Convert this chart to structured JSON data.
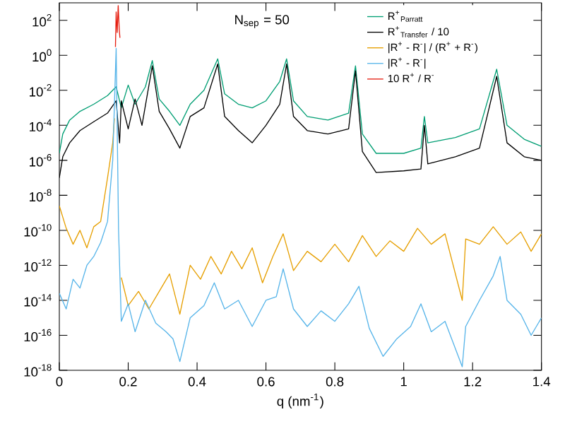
{
  "chart_data": {
    "type": "line",
    "xlabel": "q (nm$^{-1}$)",
    "annotations": [
      "N$_{sep}$ = 50"
    ],
    "xlim": [
      0,
      1.4
    ],
    "xticks": [
      0,
      0.2,
      0.4,
      0.6,
      0.8,
      1,
      1.2,
      1.4
    ],
    "ylim": [
      1e-18,
      1000
    ],
    "log": "y",
    "yticks": [
      {
        "value": 1e-18,
        "label": "10$^{-18}$"
      },
      {
        "value": 1e-16,
        "label": "10$^{-16}$"
      },
      {
        "value": 1e-14,
        "label": "10$^{-14}$"
      },
      {
        "value": 1e-12,
        "label": "10$^{-12}$"
      },
      {
        "value": 1e-10,
        "label": "10$^{-10}$"
      },
      {
        "value": 1e-08,
        "label": "10$^{-8}$"
      },
      {
        "value": 1e-06,
        "label": "10$^{-6}$"
      },
      {
        "value": 0.0001,
        "label": "10$^{-4}$"
      },
      {
        "value": 0.01,
        "label": "10$^{-2}$"
      },
      {
        "value": 1,
        "label": "10$^{0}$"
      },
      {
        "value": 100,
        "label": "10$^{2}$"
      }
    ],
    "legend": "top right",
    "series": [
      {
        "name": "R$^{+}$$_{Parratt}$",
        "color": "#009e73",
        "x": [
          0,
          0.01,
          0.03,
          0.06,
          0.1,
          0.14,
          0.165,
          0.18,
          0.2,
          0.22,
          0.25,
          0.27,
          0.29,
          0.32,
          0.35,
          0.38,
          0.42,
          0.46,
          0.48,
          0.52,
          0.56,
          0.6,
          0.64,
          0.66,
          0.68,
          0.72,
          0.78,
          0.84,
          0.86,
          0.88,
          0.92,
          1.0,
          1.05,
          1.06,
          1.07,
          1.15,
          1.22,
          1.27,
          1.3,
          1.35,
          1.4
        ],
        "values": [
          2.5e-06,
          3.2e-05,
          0.0002,
          0.00063,
          0.0016,
          0.005,
          0.016,
          0.001,
          0.02,
          0.0016,
          0.016,
          0.5,
          0.0032,
          0.00063,
          0.0001,
          0.0016,
          0.01,
          0.63,
          0.0063,
          0.0016,
          0.001,
          0.0025,
          0.032,
          0.63,
          0.0025,
          0.00032,
          0.0002,
          0.0005,
          0.25,
          3.2e-05,
          2.5e-06,
          2.5e-06,
          5e-06,
          0.00032,
          1e-05,
          2e-05,
          6.3e-05,
          0.16,
          0.0001,
          1.6e-05,
          6.3e-06
        ]
      },
      {
        "name": "R$^{+}$$_{Transfer}$ / 10",
        "color": "#000000",
        "x": [
          0,
          0.01,
          0.03,
          0.06,
          0.1,
          0.14,
          0.165,
          0.175,
          0.18,
          0.2,
          0.22,
          0.24,
          0.27,
          0.29,
          0.32,
          0.35,
          0.38,
          0.42,
          0.46,
          0.48,
          0.52,
          0.56,
          0.6,
          0.64,
          0.66,
          0.68,
          0.72,
          0.78,
          0.84,
          0.86,
          0.88,
          0.92,
          1.0,
          1.05,
          1.06,
          1.07,
          1.15,
          1.22,
          1.27,
          1.3,
          1.35,
          1.4
        ],
        "values": [
          1e-07,
          1.6e-06,
          1e-05,
          5e-05,
          0.00016,
          0.0005,
          0.0025,
          1e-05,
          0.0025,
          6.3e-05,
          0.0032,
          0.0001,
          0.25,
          0.00063,
          6.3e-05,
          5e-06,
          0.00032,
          0.001,
          0.32,
          0.00032,
          5e-05,
          1e-05,
          0.0001,
          0.0016,
          0.32,
          0.00032,
          5e-05,
          3.2e-05,
          6.3e-05,
          0.13,
          3.2e-06,
          2e-07,
          2.5e-07,
          3.2e-07,
          0.0001,
          6.3e-07,
          1.6e-06,
          5e-06,
          0.063,
          1e-05,
          1.6e-06,
          1e-06
        ]
      },
      {
        "name": "|R$^{+}$ - R$^{-}$| / (R$^{+}$ + R$^{-}$)",
        "color": "#e69f00",
        "x": [
          0,
          0.02,
          0.04,
          0.06,
          0.08,
          0.1,
          0.12,
          0.14,
          0.155,
          0.16,
          0.17,
          0.18,
          0.2,
          0.23,
          0.26,
          0.29,
          0.32,
          0.35,
          0.38,
          0.41,
          0.44,
          0.47,
          0.5,
          0.53,
          0.56,
          0.59,
          0.62,
          0.65,
          0.68,
          0.72,
          0.76,
          0.8,
          0.84,
          0.88,
          0.92,
          0.96,
          1.0,
          1.04,
          1.08,
          1.12,
          1.17,
          1.18,
          1.22,
          1.26,
          1.3,
          1.34,
          1.37,
          1.4
        ],
        "values": [
          2.5e-09,
          1.3e-10,
          1.6e-11,
          1e-10,
          1e-11,
          1.6e-10,
          3.2e-10,
          1e-07,
          1e-05,
          0.00025,
          null,
          2e-13,
          5e-15,
          3.2e-14,
          3.2e-15,
          3.2e-14,
          3.2e-13,
          1.6e-15,
          1e-12,
          1.6e-13,
          3.2e-12,
          3.2e-13,
          6.3e-12,
          6.3e-13,
          1e-11,
          1e-13,
          3.2e-12,
          6.3e-11,
          5e-13,
          6.3e-12,
          1.6e-12,
          1.6e-11,
          1.6e-12,
          5e-11,
          3.2e-12,
          2.5e-11,
          6.3e-12,
          1.3e-10,
          1.6e-11,
          6.3e-11,
          1e-14,
          3.2e-11,
          1.6e-11,
          1.6e-10,
          1.6e-11,
          8e-11,
          6.3e-12,
          6.3e-11
        ]
      },
      {
        "name": "|R$^{+}$ - R$^{-}$|",
        "color": "#56b4e9",
        "x": [
          0,
          0.02,
          0.04,
          0.06,
          0.08,
          0.1,
          0.12,
          0.14,
          0.155,
          0.165,
          0.172,
          0.18,
          0.2,
          0.22,
          0.25,
          0.28,
          0.31,
          0.33,
          0.35,
          0.38,
          0.42,
          0.45,
          0.48,
          0.52,
          0.56,
          0.6,
          0.63,
          0.65,
          0.68,
          0.72,
          0.76,
          0.8,
          0.84,
          0.87,
          0.9,
          0.94,
          0.98,
          1.02,
          1.05,
          1.08,
          1.12,
          1.17,
          1.18,
          1.22,
          1.26,
          1.28,
          1.3,
          1.34,
          1.37,
          1.4
        ],
        "values": [
          2.5e-14,
          3.2e-15,
          1.6e-13,
          5e-14,
          1e-12,
          3.2e-12,
          2e-11,
          3.2e-10,
          1e-06,
          2.5,
          1e-10,
          6.3e-16,
          6.3e-15,
          1.6e-16,
          1e-14,
          5e-16,
          1.6e-16,
          6.3e-17,
          3.2e-18,
          1e-15,
          5e-15,
          1e-13,
          3.2e-15,
          1e-14,
          3.2e-16,
          1e-14,
          1.6e-14,
          6.3e-13,
          3.2e-15,
          3.2e-16,
          2.5e-15,
          6.3e-16,
          6.3e-15,
          6.3e-14,
          2.5e-16,
          6.3e-18,
          6.3e-17,
          3.2e-16,
          6.3e-15,
          1.6e-16,
          6.3e-16,
          1.6e-18,
          3.2e-16,
          1e-14,
          2.5e-13,
          3.2e-12,
          1e-14,
          1.6e-15,
          1e-16,
          1e-15
        ]
      },
      {
        "name": "10 R$^{+}$ / R$^{-}$",
        "color": "#e51e10",
        "x": [
          0.163,
          0.165,
          0.168,
          0.171,
          0.174,
          0.176
        ],
        "values": [
          3,
          300,
          20,
          700,
          30,
          10
        ]
      }
    ]
  }
}
